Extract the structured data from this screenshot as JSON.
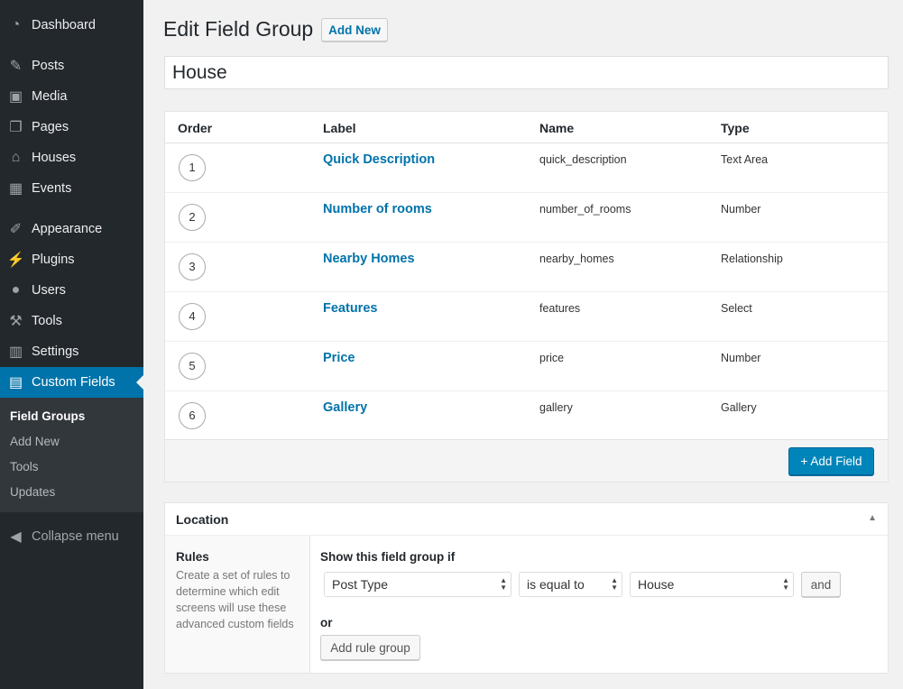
{
  "sidebar": {
    "items": [
      {
        "label": "Dashboard",
        "icon": "dashboard-icon"
      },
      {
        "label": "Posts",
        "icon": "pin-icon"
      },
      {
        "label": "Media",
        "icon": "media-icon"
      },
      {
        "label": "Pages",
        "icon": "pages-icon"
      },
      {
        "label": "Houses",
        "icon": "home-icon"
      },
      {
        "label": "Events",
        "icon": "calendar-icon"
      },
      {
        "label": "Appearance",
        "icon": "brush-icon"
      },
      {
        "label": "Plugins",
        "icon": "plugin-icon"
      },
      {
        "label": "Users",
        "icon": "user-icon"
      },
      {
        "label": "Tools",
        "icon": "wrench-icon"
      },
      {
        "label": "Settings",
        "icon": "settings-icon"
      },
      {
        "label": "Custom Fields",
        "icon": "custom-fields-icon",
        "active": true
      }
    ],
    "submenu": [
      "Field Groups",
      "Add New",
      "Tools",
      "Updates"
    ],
    "collapse": "Collapse menu"
  },
  "header": {
    "title": "Edit Field Group",
    "add_new": "Add New"
  },
  "title_value": "House",
  "fields": {
    "columns": [
      "Order",
      "Label",
      "Name",
      "Type"
    ],
    "rows": [
      {
        "order": "1",
        "label": "Quick Description",
        "name": "quick_description",
        "type": "Text Area"
      },
      {
        "order": "2",
        "label": "Number of rooms",
        "name": "number_of_rooms",
        "type": "Number"
      },
      {
        "order": "3",
        "label": "Nearby Homes",
        "name": "nearby_homes",
        "type": "Relationship"
      },
      {
        "order": "4",
        "label": "Features",
        "name": "features",
        "type": "Select"
      },
      {
        "order": "5",
        "label": "Price",
        "name": "price",
        "type": "Number"
      },
      {
        "order": "6",
        "label": "Gallery",
        "name": "gallery",
        "type": "Gallery"
      }
    ],
    "add_field": "+ Add Field"
  },
  "location": {
    "title": "Location",
    "rules_label": "Rules",
    "rules_desc": "Create a set of rules to determine which edit screens will use these advanced custom fields",
    "show_if": "Show this field group if",
    "param": "Post Type",
    "operator": "is equal to",
    "value": "House",
    "and": "and",
    "or": "or",
    "add_rule_group": "Add rule group"
  },
  "colors": {
    "sidebar": "#23282d",
    "accent": "#0073aa",
    "button": "#0085ba"
  }
}
